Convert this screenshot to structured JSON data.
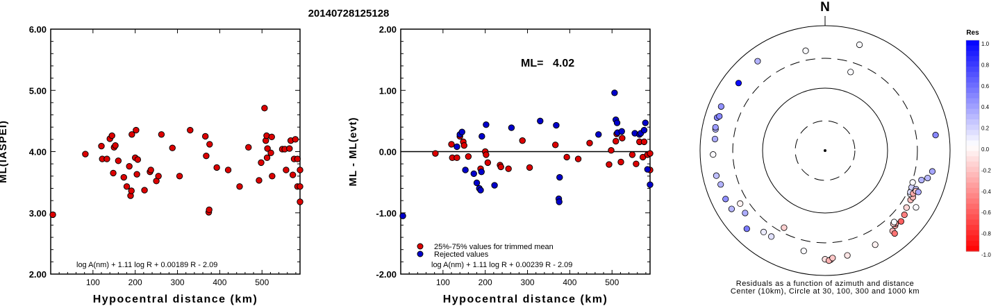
{
  "title": "20140728125128",
  "chart_data": [
    {
      "type": "scatter",
      "ylabel": "ML(IASPEI)",
      "xlabel": "Hypocentral distance (km)",
      "xlim": [
        0,
        590
      ],
      "ylim": [
        2.0,
        6.0
      ],
      "x_ticks": [
        "100",
        "200",
        "300",
        "400",
        "500"
      ],
      "x_tick_values": [
        100,
        200,
        300,
        400,
        500
      ],
      "y_ticks": [
        "2.00",
        "3.00",
        "4.00",
        "5.00",
        "6.00"
      ],
      "y_tick_values": [
        2,
        3,
        4,
        5,
        6
      ],
      "formula": "log A(nm) + 1.11 log R + 0.00189 R - 2.09",
      "grid": false,
      "point_color": "#dd0000",
      "points": [
        [
          5,
          2.97
        ],
        [
          82,
          3.96
        ],
        [
          120,
          4.09
        ],
        [
          122,
          3.88
        ],
        [
          133,
          3.88
        ],
        [
          140,
          4.21
        ],
        [
          145,
          4.26
        ],
        [
          148,
          3.65
        ],
        [
          150,
          4.07
        ],
        [
          153,
          4.1
        ],
        [
          160,
          3.85
        ],
        [
          173,
          3.58
        ],
        [
          180,
          3.43
        ],
        [
          186,
          3.76
        ],
        [
          189,
          3.28
        ],
        [
          191,
          3.36
        ],
        [
          192,
          4.28
        ],
        [
          200,
          3.9
        ],
        [
          202,
          4.35
        ],
        [
          204,
          3.63
        ],
        [
          206,
          3.87
        ],
        [
          222,
          3.37
        ],
        [
          235,
          3.67
        ],
        [
          237,
          3.7
        ],
        [
          250,
          3.52
        ],
        [
          255,
          3.6
        ],
        [
          262,
          4.28
        ],
        [
          288,
          4.06
        ],
        [
          305,
          3.6
        ],
        [
          330,
          4.35
        ],
        [
          366,
          4.25
        ],
        [
          368,
          3.93
        ],
        [
          374,
          3.01
        ],
        [
          375,
          3.05
        ],
        [
          376,
          4.12
        ],
        [
          393,
          3.74
        ],
        [
          420,
          3.7
        ],
        [
          447,
          3.43
        ],
        [
          468,
          4.07
        ],
        [
          493,
          3.53
        ],
        [
          498,
          3.82
        ],
        [
          506,
          4.71
        ],
        [
          509,
          4.18
        ],
        [
          511,
          4.26
        ],
        [
          512,
          3.9
        ],
        [
          513,
          4.05
        ],
        [
          521,
          3.98
        ],
        [
          523,
          4.24
        ],
        [
          524,
          3.6
        ],
        [
          548,
          4.04
        ],
        [
          554,
          4.04
        ],
        [
          557,
          3.7
        ],
        [
          565,
          4.05
        ],
        [
          568,
          4.18
        ],
        [
          573,
          3.62
        ],
        [
          576,
          3.88
        ],
        [
          579,
          4.2
        ],
        [
          584,
          3.88
        ],
        [
          584,
          3.43
        ],
        [
          590,
          3.43
        ],
        [
          590,
          3.7
        ],
        [
          590,
          3.18
        ]
      ]
    },
    {
      "type": "scatter",
      "ylabel": "ML - ML(evt)",
      "xlabel": "Hypocentral distance (km)",
      "xlim": [
        0,
        590
      ],
      "ylim": [
        -2.0,
        2.0
      ],
      "x_ticks": [
        "100",
        "200",
        "300",
        "400",
        "500"
      ],
      "x_tick_values": [
        100,
        200,
        300,
        400,
        500
      ],
      "y_ticks": [
        "-2.00",
        "-1.00",
        "0.00",
        "1.00",
        "2.00"
      ],
      "y_tick_values": [
        -2,
        -1,
        0,
        1,
        2
      ],
      "ml_label": "ML=",
      "ml_value": "4.02",
      "formula": "log A(nm) + 1.11 log R + 0.00239 R - 2.09",
      "legend": [
        {
          "label": "25%-75% values for trimmed mean",
          "color": "#dd0000"
        },
        {
          "label": "Rejected values",
          "color": "#0000cc"
        }
      ],
      "series": [
        {
          "name": "25%-75% values for trimmed mean",
          "color": "#dd0000",
          "points": [
            [
              82,
              -0.03
            ],
            [
              120,
              0.12
            ],
            [
              122,
              -0.1
            ],
            [
              133,
              -0.1
            ],
            [
              140,
              0.25
            ],
            [
              148,
              0.16
            ],
            [
              150,
              0.1
            ],
            [
              160,
              -0.08
            ],
            [
              189,
              -0.28
            ],
            [
              200,
              0.0
            ],
            [
              202,
              -0.05
            ],
            [
              206,
              -0.18
            ],
            [
              235,
              -0.22
            ],
            [
              237,
              -0.25
            ],
            [
              255,
              -0.28
            ],
            [
              288,
              0.18
            ],
            [
              305,
              -0.26
            ],
            [
              366,
              0.11
            ],
            [
              393,
              -0.09
            ],
            [
              420,
              -0.12
            ],
            [
              447,
              0.14
            ],
            [
              493,
              -0.21
            ],
            [
              498,
              0.02
            ],
            [
              509,
              0.17
            ],
            [
              511,
              0.29
            ],
            [
              521,
              -0.17
            ],
            [
              524,
              0.22
            ],
            [
              548,
              -0.05
            ],
            [
              557,
              -0.2
            ],
            [
              565,
              0.16
            ],
            [
              573,
              -0.09
            ],
            [
              576,
              0.16
            ],
            [
              584,
              -0.05
            ],
            [
              590,
              -0.3
            ],
            [
              590,
              -0.03
            ]
          ]
        },
        {
          "name": "Rejected values",
          "color": "#0000cc",
          "points": [
            [
              5,
              -1.05
            ],
            [
              133,
              0.08
            ],
            [
              140,
              0.28
            ],
            [
              145,
              0.32
            ],
            [
              153,
              -0.3
            ],
            [
              173,
              -0.36
            ],
            [
              180,
              -0.51
            ],
            [
              186,
              -0.6
            ],
            [
              189,
              -0.63
            ],
            [
              191,
              -0.33
            ],
            [
              192,
              0.25
            ],
            [
              202,
              0.44
            ],
            [
              222,
              -0.55
            ],
            [
              262,
              0.39
            ],
            [
              330,
              0.5
            ],
            [
              368,
              0.43
            ],
            [
              374,
              -0.77
            ],
            [
              375,
              -0.82
            ],
            [
              376,
              -0.42
            ],
            [
              468,
              0.28
            ],
            [
              506,
              0.96
            ],
            [
              509,
              0.52
            ],
            [
              512,
              0.47
            ],
            [
              513,
              0.31
            ],
            [
              523,
              0.33
            ],
            [
              554,
              0.3
            ],
            [
              565,
              0.28
            ],
            [
              568,
              0.3
            ],
            [
              576,
              0.35
            ],
            [
              579,
              0.47
            ],
            [
              584,
              -0.29
            ],
            [
              590,
              -0.54
            ]
          ]
        }
      ]
    },
    {
      "type": "polar-scatter",
      "north_label": "N",
      "caption_1": "Residuals as a function of azimuth and distance",
      "caption_2": "Center (10km), Circle at 30, 100, 300 and 1000 km",
      "colorbar_title": "Res",
      "colorbar_ticks": [
        "1.0",
        "0.8",
        "0.6",
        "0.4",
        "0.2",
        "0.0",
        "-0.2",
        "-0.4",
        "-0.6",
        "-0.8",
        "-1.0"
      ],
      "colorbar_tick_values": [
        1.0,
        0.8,
        0.6,
        0.4,
        0.2,
        0.0,
        -0.2,
        -0.4,
        -0.6,
        -0.8,
        -1.0
      ],
      "circles_km": [
        30,
        100,
        300,
        1000
      ],
      "points_azimuth_deg_distance_km_residual": [
        [
          308,
          570,
          0.96
        ],
        [
          323,
          620,
          0.3
        ],
        [
          18,
          605,
          0.02
        ],
        [
          287,
          640,
          0.5
        ],
        [
          293,
          640,
          0.43
        ],
        [
          288,
          600,
          0.47
        ],
        [
          281,
          610,
          0.28
        ],
        [
          282,
          620,
          0.39
        ],
        [
          276,
          590,
          0.33
        ],
        [
          268,
          620,
          0.02
        ],
        [
          257,
          610,
          0.25
        ],
        [
          252,
          570,
          0.3
        ],
        [
          238,
          580,
          0.28
        ],
        [
          244,
          590,
          0.44
        ],
        [
          232,
          420,
          0.32
        ],
        [
          225,
          590,
          0.52
        ],
        [
          217,
          430,
          0.08
        ],
        [
          212,
          420,
          0.12
        ],
        [
          238,
          400,
          -0.05
        ],
        [
          208,
          250,
          -0.18
        ],
        [
          192,
          440,
          0.02
        ],
        [
          180,
          550,
          -0.12
        ],
        [
          177,
          560,
          -0.26
        ],
        [
          178,
          580,
          -0.3
        ],
        [
          176,
          530,
          -0.22
        ],
        [
          168,
          520,
          -0.1
        ],
        [
          152,
          510,
          -0.05
        ],
        [
          140,
          480,
          -0.28
        ],
        [
          137,
          440,
          -0.36
        ],
        [
          136,
          420,
          -0.4
        ],
        [
          137,
          400,
          -0.2
        ],
        [
          136,
          390,
          0.02
        ],
        [
          140,
          540,
          -0.55
        ],
        [
          133,
          460,
          -0.63
        ],
        [
          129,
          430,
          -0.5
        ],
        [
          125,
          390,
          -0.16
        ],
        [
          120,
          380,
          -0.25
        ],
        [
          118,
          390,
          -0.28
        ],
        [
          115,
          360,
          -0.1
        ],
        [
          117,
          340,
          0.04
        ],
        [
          116,
          330,
          0.12
        ],
        [
          113,
          320,
          0.18
        ],
        [
          113,
          380,
          0.22
        ],
        [
          116,
          370,
          -0.33
        ],
        [
          114,
          390,
          -0.22
        ],
        [
          110,
          310,
          0.02
        ],
        [
          122,
          520,
          0.02
        ],
        [
          107,
          410,
          0.3
        ],
        [
          114,
          430,
          0.33
        ],
        [
          105,
          500,
          0.28
        ],
        [
          101,
          560,
          0.35
        ],
        [
          82,
          610,
          0.47
        ],
        [
          18,
          210,
          0.02
        ],
        [
          349,
          425,
          0.02
        ]
      ]
    }
  ]
}
